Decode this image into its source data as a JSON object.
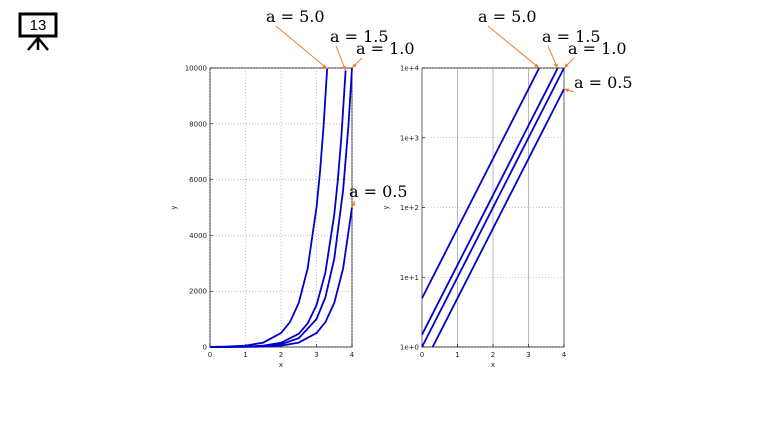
{
  "slide_number": "13",
  "chart_data": [
    {
      "type": "line",
      "xlabel": "x",
      "ylabel": "y",
      "xlim": [
        0,
        4
      ],
      "ylim": [
        0,
        10000
      ],
      "xticks": [
        0,
        1,
        2,
        3,
        4
      ],
      "yticks": [
        0,
        2000,
        4000,
        6000,
        8000,
        10000
      ],
      "grid": true,
      "log_y": false,
      "series": [
        {
          "name": "a = 5.0",
          "color": "#0000cc",
          "x": [
            0,
            0.5,
            1,
            1.5,
            2,
            2.25,
            2.5,
            2.75,
            3,
            3.1,
            3.2,
            3.3
          ],
          "values": [
            5,
            15.8,
            50,
            158,
            500,
            889,
            1581,
            2812,
            5000,
            6295,
            7924,
            9976
          ]
        },
        {
          "name": "a = 1.5",
          "color": "#0000cc",
          "x": [
            0,
            0.5,
            1,
            1.5,
            2,
            2.5,
            2.75,
            3,
            3.25,
            3.5,
            3.6,
            3.7,
            3.82
          ],
          "values": [
            1.5,
            4.7,
            15,
            47,
            150,
            474,
            844,
            1500,
            2667,
            4743,
            5972,
            7518,
            9908
          ]
        },
        {
          "name": "a = 1.0",
          "color": "#0000cc",
          "x": [
            0,
            0.5,
            1,
            1.5,
            2,
            2.5,
            3,
            3.25,
            3.5,
            3.75,
            3.9,
            4
          ],
          "values": [
            1,
            3.2,
            10,
            32,
            100,
            316,
            1000,
            1778,
            3162,
            5623,
            7943,
            10000
          ]
        },
        {
          "name": "a = 0.5",
          "color": "#0000cc",
          "x": [
            0,
            0.5,
            1,
            1.5,
            2,
            2.5,
            3,
            3.25,
            3.5,
            3.75,
            4
          ],
          "values": [
            0.5,
            1.6,
            5,
            16,
            50,
            158,
            500,
            889,
            1581,
            2812,
            5000
          ]
        }
      ]
    },
    {
      "type": "line",
      "xlabel": "x",
      "ylabel": "y",
      "xlim": [
        0,
        4
      ],
      "ylim": [
        1,
        10000
      ],
      "xticks": [
        0,
        1,
        2,
        3,
        4
      ],
      "yticks": [
        {
          "value": 1,
          "label": "1e+0"
        },
        {
          "value": 10,
          "label": "1e+1"
        },
        {
          "value": 100,
          "label": "1e+2"
        },
        {
          "value": 1000,
          "label": "1e+3"
        },
        {
          "value": 10000,
          "label": "1e+4"
        }
      ],
      "grid": true,
      "log_y": true,
      "series": [
        {
          "name": "a = 5.0",
          "color": "#0000cc",
          "x": [
            0,
            3.3
          ],
          "values": [
            5,
            9976
          ]
        },
        {
          "name": "a = 1.5",
          "color": "#0000cc",
          "x": [
            0,
            3.82
          ],
          "values": [
            1.5,
            9908
          ]
        },
        {
          "name": "a = 1.0",
          "color": "#0000cc",
          "x": [
            0,
            4
          ],
          "values": [
            1,
            10000
          ]
        },
        {
          "name": "a = 0.5",
          "color": "#0000cc",
          "x": [
            0.3,
            4
          ],
          "values": [
            1,
            5000
          ]
        }
      ]
    }
  ]
}
